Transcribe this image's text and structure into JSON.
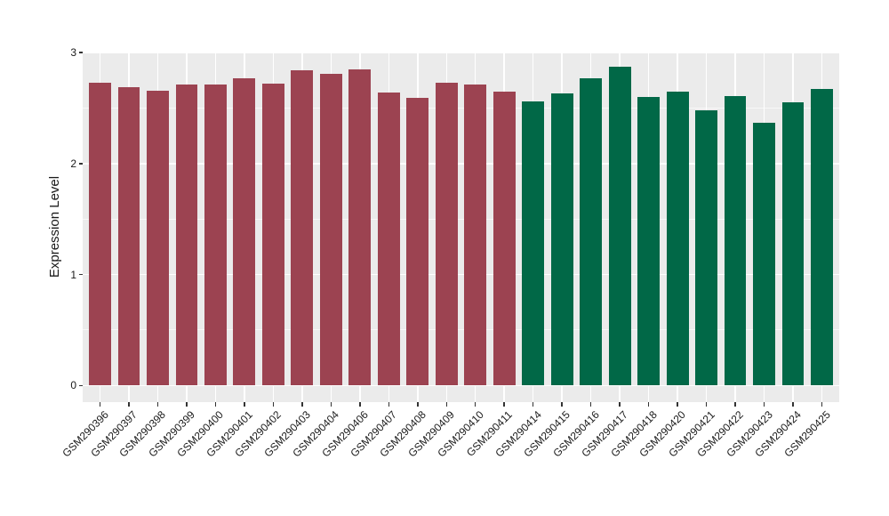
{
  "chart_data": {
    "type": "bar",
    "title": "",
    "xlabel": "",
    "ylabel": "Expression Level",
    "categories": [
      "GSM290396",
      "GSM290397",
      "GSM290398",
      "GSM290399",
      "GSM290400",
      "GSM290401",
      "GSM290402",
      "GSM290403",
      "GSM290404",
      "GSM290406",
      "GSM290407",
      "GSM290408",
      "GSM290409",
      "GSM290410",
      "GSM290411",
      "GSM290414",
      "GSM290415",
      "GSM290416",
      "GSM290417",
      "GSM290418",
      "GSM290420",
      "GSM290421",
      "GSM290422",
      "GSM290423",
      "GSM290424",
      "GSM290425"
    ],
    "values": [
      2.73,
      2.69,
      2.66,
      2.71,
      2.71,
      2.77,
      2.72,
      2.84,
      2.81,
      2.85,
      2.64,
      2.59,
      2.73,
      2.71,
      2.65,
      2.56,
      2.63,
      2.77,
      2.87,
      2.6,
      2.65,
      2.48,
      2.61,
      2.37,
      2.55,
      2.67
    ],
    "groups": [
      0,
      0,
      0,
      0,
      0,
      0,
      0,
      0,
      0,
      0,
      0,
      0,
      0,
      0,
      0,
      1,
      1,
      1,
      1,
      1,
      1,
      1,
      1,
      1,
      1,
      1
    ],
    "group_colors": [
      "#9C4351",
      "#016847"
    ],
    "y_ticks": [
      0,
      1,
      2,
      3
    ],
    "y_tick_labels": [
      "0",
      "1",
      "2",
      "3"
    ],
    "y_minor_ticks": [
      0.5,
      1.5,
      2.5
    ],
    "ylim": [
      -0.15,
      3.01
    ],
    "legend": false,
    "grid": true,
    "panel_background": "#EBEBEB",
    "grid_color": "#FFFFFF",
    "tick_color": "#333333",
    "axis_text_color": "#1A1A1A"
  }
}
